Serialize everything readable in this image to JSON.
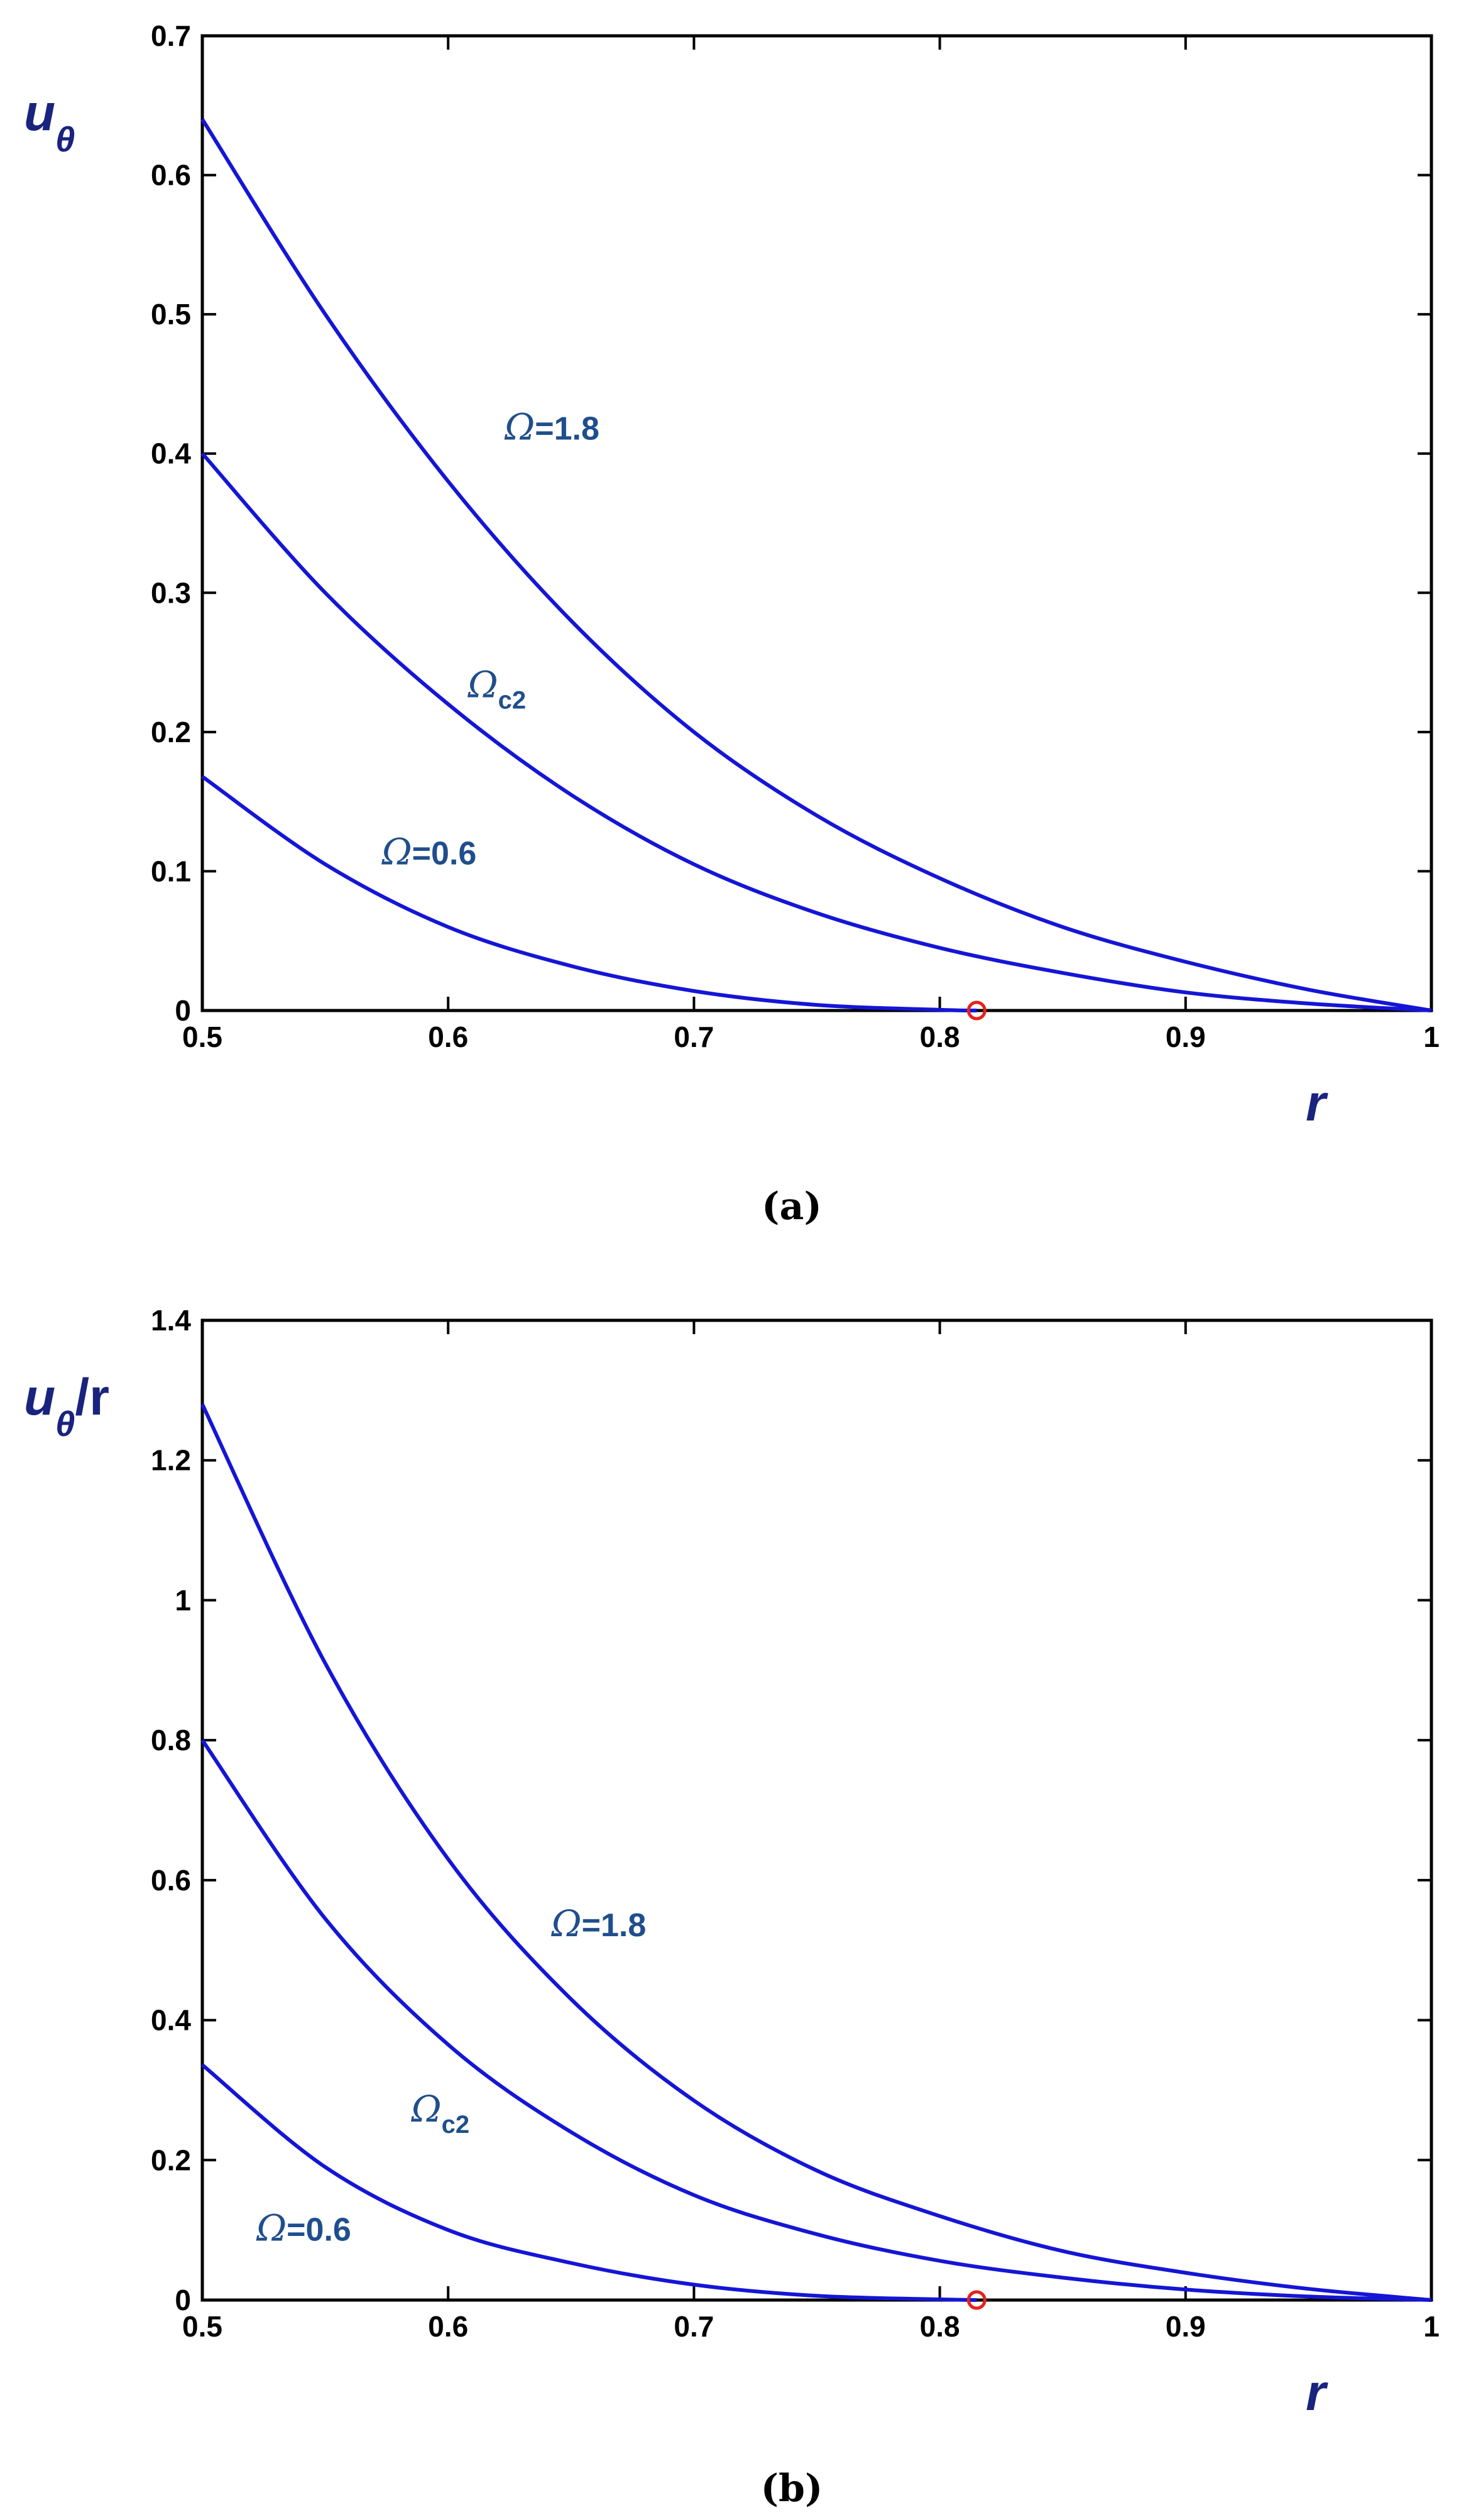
{
  "chart_data": [
    {
      "type": "line",
      "caption": "(a)",
      "xlabel": "r",
      "ylabel": "u",
      "ylabel_sub": "θ",
      "ylabel_suffix": "",
      "xlim": [
        0.5,
        1
      ],
      "ylim": [
        0,
        0.7
      ],
      "xticks": [
        0.5,
        0.6,
        0.7,
        0.8,
        0.9,
        1
      ],
      "xtick_labels": [
        "0.5",
        "0.6",
        "0.7",
        "0.8",
        "0.9",
        "1"
      ],
      "yticks": [
        0,
        0.1,
        0.2,
        0.3,
        0.4,
        0.5,
        0.6,
        0.7
      ],
      "ytick_labels": [
        "0",
        "0.1",
        "0.2",
        "0.3",
        "0.4",
        "0.5",
        "0.6",
        "0.7"
      ],
      "line_color": "#1515d6",
      "label_color": "#1f4e8c",
      "marker_color": "#e8211b",
      "series": [
        {
          "name": "Ω=1.8",
          "x": [
            0.5,
            0.55,
            0.6,
            0.65,
            0.7,
            0.75,
            0.8,
            0.85,
            0.9,
            0.95,
            1.0
          ],
          "y": [
            0.64,
            0.5,
            0.38,
            0.28,
            0.2,
            0.14,
            0.095,
            0.06,
            0.035,
            0.015,
            0.0
          ]
        },
        {
          "name": "Ωc2",
          "x": [
            0.5,
            0.55,
            0.6,
            0.65,
            0.7,
            0.75,
            0.8,
            0.85,
            0.9,
            0.95,
            1.0
          ],
          "y": [
            0.4,
            0.3,
            0.22,
            0.155,
            0.105,
            0.07,
            0.045,
            0.027,
            0.013,
            0.005,
            0.0
          ]
        },
        {
          "name": "Ω=0.6",
          "x": [
            0.5,
            0.55,
            0.6,
            0.65,
            0.7,
            0.75,
            0.8,
            0.815
          ],
          "y": [
            0.168,
            0.105,
            0.06,
            0.032,
            0.014,
            0.004,
            0.0005,
            0.0
          ]
        }
      ],
      "labels": [
        {
          "omega": "Ω",
          "text": "=1.8",
          "sub": "",
          "x": 0.623,
          "y": 0.41
        },
        {
          "omega": "Ω",
          "text": "",
          "sub": "c2",
          "x": 0.608,
          "y": 0.225
        },
        {
          "omega": "Ω",
          "text": "=0.6",
          "sub": "",
          "x": 0.573,
          "y": 0.105
        }
      ],
      "markers": [
        {
          "x": 0.815,
          "y": 0.0
        }
      ]
    },
    {
      "type": "line",
      "caption": "(b)",
      "xlabel": "r",
      "ylabel": "u",
      "ylabel_sub": "θ",
      "ylabel_suffix": "/r",
      "xlim": [
        0.5,
        1
      ],
      "ylim": [
        0,
        1.4
      ],
      "xticks": [
        0.5,
        0.6,
        0.7,
        0.8,
        0.9,
        1
      ],
      "xtick_labels": [
        "0.5",
        "0.6",
        "0.7",
        "0.8",
        "0.9",
        "1"
      ],
      "yticks": [
        0,
        0.2,
        0.4,
        0.6,
        0.8,
        1,
        1.2,
        1.4
      ],
      "ytick_labels": [
        "0",
        "0.2",
        "0.4",
        "0.6",
        "0.8",
        "1",
        "1.2",
        "1.4"
      ],
      "line_color": "#1515d6",
      "label_color": "#1f4e8c",
      "marker_color": "#e8211b",
      "series": [
        {
          "name": "Ω=1.8",
          "x": [
            0.5,
            0.55,
            0.6,
            0.65,
            0.7,
            0.75,
            0.8,
            0.85,
            0.9,
            0.95,
            1.0
          ],
          "y": [
            1.28,
            0.91,
            0.63,
            0.43,
            0.285,
            0.185,
            0.12,
            0.07,
            0.039,
            0.016,
            0.0
          ]
        },
        {
          "name": "Ωc2",
          "x": [
            0.5,
            0.55,
            0.6,
            0.65,
            0.7,
            0.75,
            0.8,
            0.85,
            0.9,
            0.95,
            1.0
          ],
          "y": [
            0.8,
            0.545,
            0.365,
            0.24,
            0.15,
            0.094,
            0.056,
            0.032,
            0.015,
            0.005,
            0.0
          ]
        },
        {
          "name": "Ω=0.6",
          "x": [
            0.5,
            0.55,
            0.6,
            0.65,
            0.7,
            0.75,
            0.8,
            0.815
          ],
          "y": [
            0.336,
            0.19,
            0.1,
            0.053,
            0.022,
            0.006,
            0.001,
            0.0
          ]
        }
      ],
      "labels": [
        {
          "omega": "Ω",
          "text": "=1.8",
          "sub": "",
          "x": 0.642,
          "y": 0.52
        },
        {
          "omega": "Ω",
          "text": "",
          "sub": "c2",
          "x": 0.585,
          "y": 0.255
        },
        {
          "omega": "Ω",
          "text": "=0.6",
          "sub": "",
          "x": 0.522,
          "y": 0.085
        }
      ],
      "markers": [
        {
          "x": 0.815,
          "y": 0.0
        }
      ]
    }
  ]
}
